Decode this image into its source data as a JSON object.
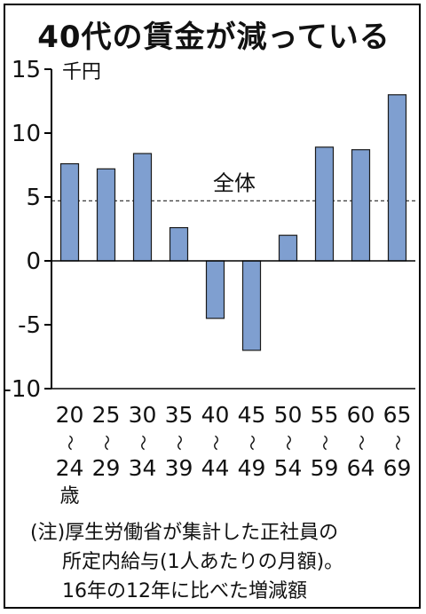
{
  "title": "40代の賃金が減っている",
  "chart_data": {
    "type": "bar",
    "unit_label": "千円",
    "categories": [
      {
        "top": "20",
        "bottom": "24"
      },
      {
        "top": "25",
        "bottom": "29"
      },
      {
        "top": "30",
        "bottom": "34"
      },
      {
        "top": "35",
        "bottom": "39"
      },
      {
        "top": "40",
        "bottom": "44"
      },
      {
        "top": "45",
        "bottom": "49"
      },
      {
        "top": "50",
        "bottom": "54"
      },
      {
        "top": "55",
        "bottom": "59"
      },
      {
        "top": "60",
        "bottom": "64"
      },
      {
        "top": "65",
        "bottom": "69"
      }
    ],
    "range_mark": "〜",
    "age_suffix": "歳",
    "values": [
      7.6,
      7.2,
      8.4,
      2.6,
      -4.5,
      -7.0,
      2.0,
      8.9,
      8.7,
      13.0
    ],
    "ylim": [
      -10,
      15
    ],
    "yticks": [
      "15",
      "10",
      "5",
      "0",
      "-5",
      "-10"
    ],
    "ytick_values": [
      15,
      10,
      5,
      0,
      -5,
      -10
    ],
    "reference_line": {
      "label": "全体",
      "value": 4.7,
      "style": "dashed"
    },
    "bar_color": "#7f9fd0",
    "bar_border_color": "#1a1a1a"
  },
  "note": {
    "line1": "(注)厚生労働省が集計した正社員の",
    "line2": "所定内給与(1人あたりの月額)。",
    "line3": "16年の12年に比べた増減額"
  }
}
